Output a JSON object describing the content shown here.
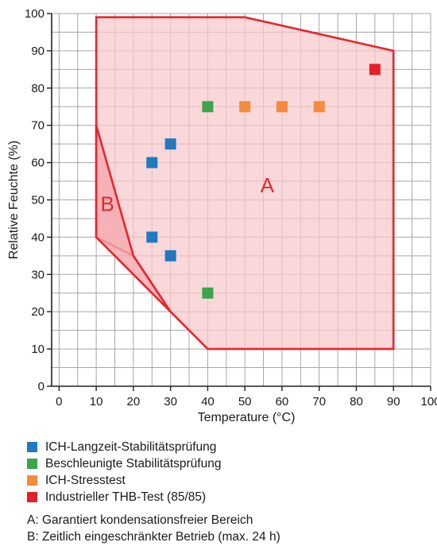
{
  "chart_data": {
    "type": "scatter",
    "xlabel": "Temperature (°C)",
    "ylabel": "Relative Feuchte (%)",
    "xlim": [
      -2,
      100
    ],
    "ylim": [
      0,
      100
    ],
    "x_ticks": [
      0,
      10,
      20,
      30,
      40,
      50,
      60,
      70,
      80,
      90,
      100
    ],
    "y_ticks": [
      0,
      10,
      20,
      30,
      40,
      50,
      60,
      70,
      80,
      90,
      100
    ],
    "grid": true,
    "grid_minor_step": 5,
    "regions": [
      {
        "label": "A",
        "color": "#e8262c",
        "fill": "#f8c8cb",
        "label_at": [
          56,
          52
        ],
        "points": [
          [
            10,
            99
          ],
          [
            50,
            99
          ],
          [
            90,
            90
          ],
          [
            90,
            10
          ],
          [
            40,
            10
          ],
          [
            30,
            20
          ],
          [
            20,
            35
          ],
          [
            10,
            40
          ],
          [
            10,
            70
          ]
        ]
      },
      {
        "label": "B",
        "color": "#e8262c",
        "fill": "#f4a9ae",
        "label_at": [
          13,
          47
        ],
        "points": [
          [
            10,
            70
          ],
          [
            20,
            35
          ],
          [
            30,
            20
          ],
          [
            20,
            30
          ],
          [
            10,
            40
          ]
        ]
      }
    ],
    "series": [
      {
        "name": "ICH-Langzeit-Stabilitätsprüfung",
        "color": "#1f7ac0",
        "points": [
          [
            25,
            60
          ],
          [
            30,
            65
          ],
          [
            25,
            40
          ],
          [
            30,
            35
          ]
        ]
      },
      {
        "name": "Beschleunigte Stabilitätsprüfung",
        "color": "#3aa54a",
        "points": [
          [
            40,
            75
          ],
          [
            40,
            25
          ]
        ]
      },
      {
        "name": "ICH-Stresstest",
        "color": "#f68b3c",
        "points": [
          [
            50,
            75
          ],
          [
            60,
            75
          ],
          [
            70,
            75
          ]
        ]
      },
      {
        "name": "Industrieller THB-Test (85/85)",
        "color": "#e41f28",
        "points": [
          [
            85,
            85
          ]
        ]
      }
    ],
    "notes": [
      "A: Garantiert kondensationsfreier Bereich",
      "B: Zeitlich eingeschränkter Betrieb (max. 24 h)"
    ]
  }
}
